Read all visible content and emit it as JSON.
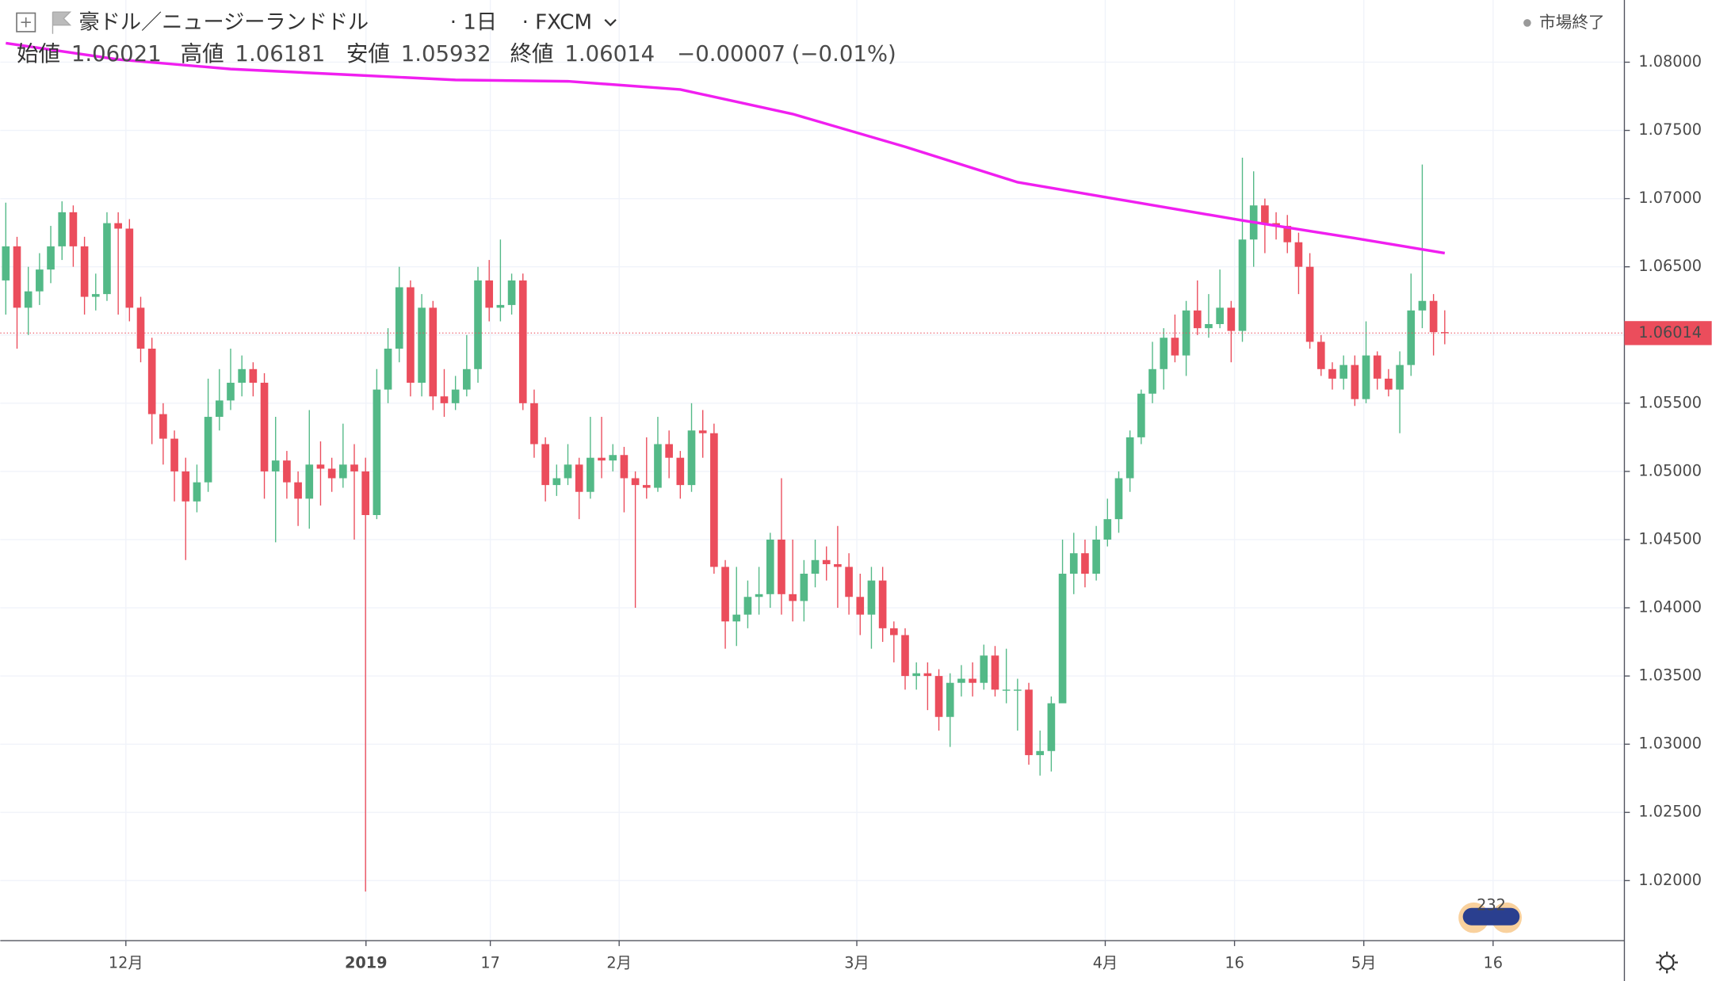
{
  "chart_data": {
    "type": "candlestick",
    "title": "豪ドル／ニュージーランドドル",
    "interval": "1日",
    "source": "FXCM",
    "status": "市場終了",
    "legend_labels": [
      "始値",
      "高値",
      "安値",
      "終値"
    ],
    "change": -7e-05,
    "change_label": "−0.00007",
    "change_pct": -0.01,
    "change_pct_label": "(−0.01%)",
    "badge": "232",
    "up_color": "#53b987",
    "down_color": "#eb4d5c",
    "x": [
      0,
      1,
      2,
      3,
      4,
      5,
      6,
      7,
      8,
      9,
      10,
      11,
      12,
      13,
      14,
      15,
      16,
      17,
      18,
      19,
      20,
      21,
      22,
      23,
      24,
      25,
      26,
      27,
      28,
      29,
      30,
      31,
      32,
      33,
      34,
      35,
      36,
      37,
      38,
      39,
      40,
      41,
      42,
      43,
      44,
      45,
      46,
      47,
      48,
      49,
      50,
      51,
      52,
      53,
      54,
      55,
      56,
      57,
      58,
      59,
      60,
      61,
      62,
      63,
      64,
      65,
      66,
      67,
      68,
      69,
      70,
      71,
      72,
      73,
      74,
      75,
      76,
      77,
      78,
      79,
      80,
      81,
      82,
      83,
      84,
      85,
      86,
      87,
      88,
      89,
      90,
      91,
      92,
      93,
      94,
      95,
      96,
      97,
      98,
      99,
      100,
      101,
      102,
      103,
      104,
      105,
      106,
      107,
      108,
      109,
      110,
      111,
      112,
      113,
      114,
      115,
      116,
      117,
      118,
      119,
      120,
      121,
      122,
      123,
      124,
      125,
      126,
      127,
      128
    ],
    "open": [
      1.064,
      1.0665,
      1.062,
      1.0632,
      1.0648,
      1.0665,
      1.069,
      1.0665,
      1.0628,
      1.063,
      1.0682,
      1.0678,
      1.062,
      1.059,
      1.0542,
      1.0524,
      1.05,
      1.0478,
      1.0492,
      1.054,
      1.0552,
      1.0565,
      1.0575,
      1.0565,
      1.05,
      1.0508,
      1.0492,
      1.048,
      1.0505,
      1.0502,
      1.0495,
      1.0505,
      1.05,
      1.0468,
      1.056,
      1.059,
      1.0635,
      1.0565,
      1.062,
      1.0555,
      1.055,
      1.056,
      1.0575,
      1.064,
      1.062,
      1.0622,
      1.064,
      1.055,
      1.052,
      1.049,
      1.0495,
      1.0505,
      1.0485,
      1.051,
      1.0508,
      1.0512,
      1.0495,
      1.049,
      1.0488,
      1.052,
      1.051,
      1.049,
      1.053,
      1.0528,
      1.043,
      1.039,
      1.0395,
      1.0408,
      1.041,
      1.045,
      1.041,
      1.0405,
      1.0425,
      1.0435,
      1.0432,
      1.043,
      1.0408,
      1.0395,
      1.042,
      1.0385,
      1.038,
      1.035,
      1.0352,
      1.035,
      1.032,
      1.0345,
      1.0348,
      1.0345,
      1.0365,
      1.034,
      1.034,
      1.034,
      1.0292,
      1.0295,
      1.033,
      1.0425,
      1.044,
      1.0425,
      1.045,
      1.0465,
      1.0495,
      1.0525,
      1.0557,
      1.0575,
      1.0598,
      1.0585,
      1.0618,
      1.0605,
      1.0608,
      1.062,
      1.0603,
      1.067,
      1.0695,
      1.0682,
      1.068,
      1.0668,
      1.065,
      1.0595,
      1.0575,
      1.0568,
      1.0578,
      1.0553,
      1.0585,
      1.0568,
      1.056,
      1.0578,
      1.0618,
      1.0625,
      1.06021
    ],
    "high": [
      1.0697,
      1.0672,
      1.065,
      1.066,
      1.068,
      1.0698,
      1.0695,
      1.0672,
      1.0645,
      1.069,
      1.069,
      1.0685,
      1.0628,
      1.0598,
      1.055,
      1.053,
      1.051,
      1.0505,
      1.0568,
      1.0575,
      1.059,
      1.0585,
      1.058,
      1.0572,
      1.054,
      1.0515,
      1.05,
      1.0545,
      1.0522,
      1.051,
      1.0535,
      1.052,
      1.051,
      1.0575,
      1.0605,
      1.065,
      1.064,
      1.063,
      1.0625,
      1.0575,
      1.057,
      1.06,
      1.065,
      1.0655,
      1.067,
      1.0645,
      1.0645,
      1.056,
      1.0525,
      1.0505,
      1.052,
      1.051,
      1.054,
      1.054,
      1.052,
      1.0518,
      1.05,
      1.0525,
      1.054,
      1.053,
      1.0515,
      1.055,
      1.0545,
      1.0535,
      1.0435,
      1.043,
      1.042,
      1.043,
      1.0455,
      1.0495,
      1.045,
      1.0435,
      1.045,
      1.0445,
      1.046,
      1.044,
      1.0425,
      1.043,
      1.043,
      1.039,
      1.0385,
      1.036,
      1.036,
      1.0355,
      1.0352,
      1.0358,
      1.036,
      1.0373,
      1.0372,
      1.037,
      1.0348,
      1.0345,
      1.031,
      1.0335,
      1.045,
      1.0455,
      1.045,
      1.046,
      1.048,
      1.05,
      1.053,
      1.056,
      1.0595,
      1.0605,
      1.0615,
      1.0625,
      1.064,
      1.063,
      1.0648,
      1.0625,
      1.073,
      1.072,
      1.07,
      1.069,
      1.0688,
      1.0675,
      1.066,
      1.06,
      1.058,
      1.0585,
      1.0585,
      1.061,
      1.0588,
      1.0575,
      1.0588,
      1.0645,
      1.0725,
      1.063,
      1.06181
    ],
    "low": [
      1.0615,
      1.059,
      1.06,
      1.0622,
      1.0638,
      1.0655,
      1.065,
      1.0615,
      1.0618,
      1.0625,
      1.0615,
      1.061,
      1.058,
      1.052,
      1.0505,
      1.0478,
      1.0435,
      1.047,
      1.0485,
      1.053,
      1.0545,
      1.0555,
      1.0555,
      1.048,
      1.0448,
      1.048,
      1.046,
      1.0458,
      1.0475,
      1.0485,
      1.0488,
      1.045,
      1.0192,
      1.0465,
      1.055,
      1.058,
      1.0555,
      1.0555,
      1.0545,
      1.054,
      1.0545,
      1.0555,
      1.0565,
      1.061,
      1.061,
      1.0615,
      1.0545,
      1.051,
      1.0478,
      1.0482,
      1.049,
      1.0465,
      1.048,
      1.0495,
      1.05,
      1.047,
      1.04,
      1.048,
      1.0485,
      1.0495,
      1.048,
      1.0485,
      1.051,
      1.0425,
      1.037,
      1.0372,
      1.0385,
      1.0395,
      1.04,
      1.0395,
      1.039,
      1.039,
      1.0415,
      1.042,
      1.04,
      1.0395,
      1.038,
      1.037,
      1.0375,
      1.036,
      1.034,
      1.034,
      1.0325,
      1.031,
      1.0298,
      1.0335,
      1.0335,
      1.034,
      1.0335,
      1.033,
      1.031,
      1.0285,
      1.0277,
      1.028,
      1.033,
      1.041,
      1.0415,
      1.042,
      1.0445,
      1.0455,
      1.0485,
      1.052,
      1.055,
      1.056,
      1.058,
      1.057,
      1.06,
      1.0598,
      1.0605,
      1.058,
      1.0595,
      1.065,
      1.066,
      1.067,
      1.066,
      1.063,
      1.059,
      1.057,
      1.056,
      1.056,
      1.0548,
      1.055,
      1.056,
      1.0555,
      1.0528,
      1.057,
      1.0605,
      1.0585,
      1.05932
    ],
    "close": [
      1.0665,
      1.062,
      1.0632,
      1.0648,
      1.0665,
      1.069,
      1.0665,
      1.0628,
      1.063,
      1.0682,
      1.0678,
      1.062,
      1.059,
      1.0542,
      1.0524,
      1.05,
      1.0478,
      1.0492,
      1.054,
      1.0552,
      1.0565,
      1.0575,
      1.0565,
      1.05,
      1.0508,
      1.0492,
      1.048,
      1.0505,
      1.0502,
      1.0495,
      1.0505,
      1.05,
      1.0468,
      1.056,
      1.059,
      1.0635,
      1.0565,
      1.062,
      1.0555,
      1.055,
      1.056,
      1.0575,
      1.064,
      1.062,
      1.0622,
      1.064,
      1.055,
      1.052,
      1.049,
      1.0495,
      1.0505,
      1.0485,
      1.051,
      1.0508,
      1.0512,
      1.0495,
      1.049,
      1.0488,
      1.052,
      1.051,
      1.049,
      1.053,
      1.0528,
      1.043,
      1.039,
      1.0395,
      1.0408,
      1.041,
      1.045,
      1.041,
      1.0405,
      1.0425,
      1.0435,
      1.0432,
      1.043,
      1.0408,
      1.0395,
      1.042,
      1.0385,
      1.038,
      1.035,
      1.0352,
      1.035,
      1.032,
      1.0345,
      1.0348,
      1.0345,
      1.0365,
      1.034,
      1.034,
      1.034,
      1.0292,
      1.0295,
      1.033,
      1.0425,
      1.044,
      1.0425,
      1.045,
      1.0465,
      1.0495,
      1.0525,
      1.0557,
      1.0575,
      1.0598,
      1.0585,
      1.0618,
      1.0605,
      1.0608,
      1.062,
      1.0603,
      1.067,
      1.0695,
      1.0682,
      1.068,
      1.0668,
      1.065,
      1.0595,
      1.0575,
      1.0568,
      1.0578,
      1.0553,
      1.0585,
      1.0568,
      1.056,
      1.0578,
      1.0618,
      1.0625,
      1.06021,
      1.06014
    ],
    "ma": {
      "color": "#f01ff0",
      "x": [
        0,
        10,
        20,
        30,
        40,
        50,
        60,
        70,
        80,
        90,
        100,
        110,
        120,
        128
      ],
      "values": [
        1.0814,
        1.0802,
        1.0795,
        1.0791,
        1.0787,
        1.0786,
        1.078,
        1.0762,
        1.0738,
        1.0712,
        1.0698,
        1.0684,
        1.0671,
        1.066
      ]
    },
    "xlim": [
      -0.49,
      143.98
    ],
    "ylim": [
      1.0156,
      1.08456
    ],
    "yticks": [
      {
        "value": 1.02,
        "label": "1.02000"
      },
      {
        "value": 1.025,
        "label": "1.02500"
      },
      {
        "value": 1.03,
        "label": "1.03000"
      },
      {
        "value": 1.035,
        "label": "1.03500"
      },
      {
        "value": 1.04,
        "label": "1.04000"
      },
      {
        "value": 1.045,
        "label": "1.04500"
      },
      {
        "value": 1.05,
        "label": "1.05000"
      },
      {
        "value": 1.055,
        "label": "1.05500"
      },
      {
        "value": 1.06,
        "label": "1.06000"
      },
      {
        "value": 1.065,
        "label": "1.06500"
      },
      {
        "value": 1.07,
        "label": "1.07000"
      },
      {
        "value": 1.075,
        "label": "1.07500"
      },
      {
        "value": 1.08,
        "label": "1.08000"
      }
    ],
    "xticks": [
      {
        "value": 10.68,
        "label": "12月"
      },
      {
        "value": 32.04,
        "label": "2019"
      },
      {
        "value": 43.1,
        "label": "17"
      },
      {
        "value": 54.56,
        "label": "2月"
      },
      {
        "value": 75.7,
        "label": "3月"
      },
      {
        "value": 97.8,
        "label": "4月"
      },
      {
        "value": 109.3,
        "label": "16"
      },
      {
        "value": 120.8,
        "label": "5月"
      },
      {
        "value": 132.3,
        "label": "16"
      }
    ],
    "grid": true,
    "last_price_line": true
  }
}
